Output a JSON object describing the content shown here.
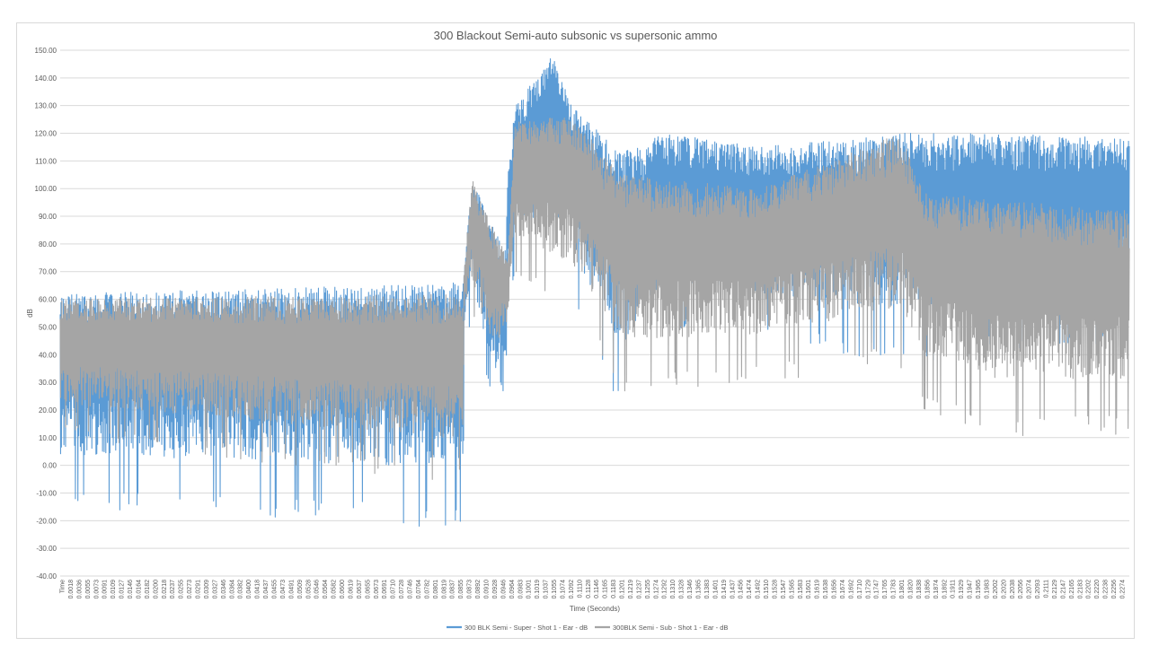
{
  "chart_data": {
    "type": "line",
    "title": "300 Blackout Semi-auto subsonic vs supersonic ammo",
    "xlabel": "Time (Seconds)",
    "ylabel": "dB",
    "ylim": [
      -40,
      150
    ],
    "yticks": [
      "150.00",
      "140.00",
      "130.00",
      "120.00",
      "110.00",
      "100.00",
      "90.00",
      "80.00",
      "70.00",
      "60.00",
      "50.00",
      "40.00",
      "30.00",
      "20.00",
      "10.00",
      "0.00",
      "-10.00",
      "-20.00",
      "-30.00",
      "-40.00"
    ],
    "x_first_label": "Time",
    "x_tick_labels": [
      "0.0018",
      "0.0036",
      "0.0055",
      "0.0073",
      "0.0091",
      "0.0109",
      "0.0127",
      "0.0146",
      "0.0164",
      "0.0182",
      "0.0200",
      "0.0218",
      "0.0237",
      "0.0255",
      "0.0273",
      "0.0291",
      "0.0309",
      "0.0327",
      "0.0346",
      "0.0364",
      "0.0382",
      "0.0400",
      "0.0418",
      "0.0437",
      "0.0455",
      "0.0473",
      "0.0491",
      "0.0509",
      "0.0528",
      "0.0546",
      "0.0564",
      "0.0582",
      "0.0600",
      "0.0619",
      "0.0637",
      "0.0655",
      "0.0673",
      "0.0691",
      "0.0710",
      "0.0728",
      "0.0746",
      "0.0764",
      "0.0782",
      "0.0801",
      "0.0819",
      "0.0837",
      "0.0855",
      "0.0873",
      "0.0892",
      "0.0910",
      "0.0928",
      "0.0946",
      "0.0964",
      "0.0983",
      "0.1001",
      "0.1019",
      "0.1037",
      "0.1055",
      "0.1074",
      "0.1092",
      "0.1110",
      "0.1128",
      "0.1146",
      "0.1165",
      "0.1183",
      "0.1201",
      "0.1219",
      "0.1237",
      "0.1255",
      "0.1274",
      "0.1292",
      "0.1310",
      "0.1328",
      "0.1346",
      "0.1365",
      "0.1383",
      "0.1401",
      "0.1419",
      "0.1437",
      "0.1456",
      "0.1474",
      "0.1492",
      "0.1510",
      "0.1528",
      "0.1547",
      "0.1565",
      "0.1583",
      "0.1601",
      "0.1619",
      "0.1638",
      "0.1656",
      "0.1674",
      "0.1692",
      "0.1710",
      "0.1729",
      "0.1747",
      "0.1765",
      "0.1783",
      "0.1801",
      "0.1820",
      "0.1838",
      "0.1856",
      "0.1874",
      "0.1892",
      "0.1911",
      "0.1929",
      "0.1947",
      "0.1965",
      "0.1983",
      "0.2002",
      "0.2020",
      "0.2038",
      "0.2056",
      "0.2074",
      "0.2093",
      "0.2111",
      "0.2129",
      "0.2147",
      "0.2165",
      "0.2183",
      "0.2202",
      "0.2220",
      "0.2238",
      "0.2256",
      "0.2274"
    ],
    "xlim": [
      0,
      0.2292
    ],
    "grid": "horizontal",
    "legend": "bottom",
    "series": [
      {
        "name": "300 BLK Semi - Super - Shot 1 - Ear - dB",
        "color": "#5b9bd5",
        "envelope": [
          {
            "t": 0.0,
            "hi": 62,
            "lo": -15
          },
          {
            "t": 0.0864,
            "hi": 66,
            "lo": -23
          },
          {
            "t": 0.0866,
            "hi": 70,
            "lo": 45
          },
          {
            "t": 0.0882,
            "hi": 105,
            "lo": 50
          },
          {
            "t": 0.093,
            "hi": 85,
            "lo": 20
          },
          {
            "t": 0.0955,
            "hi": 78,
            "lo": 6
          },
          {
            "t": 0.096,
            "hi": 105,
            "lo": 55
          },
          {
            "t": 0.0975,
            "hi": 130,
            "lo": 70
          },
          {
            "t": 0.1055,
            "hi": 148,
            "lo": 75
          },
          {
            "t": 0.11,
            "hi": 130,
            "lo": 60
          },
          {
            "t": 0.12,
            "hi": 113,
            "lo": 19
          },
          {
            "t": 0.13,
            "hi": 120,
            "lo": 50
          },
          {
            "t": 0.15,
            "hi": 115,
            "lo": 45
          },
          {
            "t": 0.18,
            "hi": 120,
            "lo": 36
          },
          {
            "t": 0.2,
            "hi": 120,
            "lo": 40
          },
          {
            "t": 0.2292,
            "hi": 118,
            "lo": 45
          }
        ]
      },
      {
        "name": "300BLK Semi - Sub - Shot 1 - Ear - dB",
        "color": "#a5a5a5",
        "envelope": [
          {
            "t": 0.0,
            "hi": 60,
            "lo": 10
          },
          {
            "t": 0.0864,
            "hi": 62,
            "lo": -8
          },
          {
            "t": 0.0866,
            "hi": 70,
            "lo": 50
          },
          {
            "t": 0.0882,
            "hi": 104,
            "lo": 55
          },
          {
            "t": 0.093,
            "hi": 85,
            "lo": 25
          },
          {
            "t": 0.096,
            "hi": 75,
            "lo": 45
          },
          {
            "t": 0.0975,
            "hi": 125,
            "lo": 70
          },
          {
            "t": 0.11,
            "hi": 126,
            "lo": 55
          },
          {
            "t": 0.12,
            "hi": 105,
            "lo": 26
          },
          {
            "t": 0.15,
            "hi": 100,
            "lo": 30
          },
          {
            "t": 0.18,
            "hi": 120,
            "lo": 36
          },
          {
            "t": 0.185,
            "hi": 100,
            "lo": 20
          },
          {
            "t": 0.2,
            "hi": 96,
            "lo": 10
          },
          {
            "t": 0.2292,
            "hi": 92,
            "lo": 11
          }
        ]
      }
    ]
  }
}
